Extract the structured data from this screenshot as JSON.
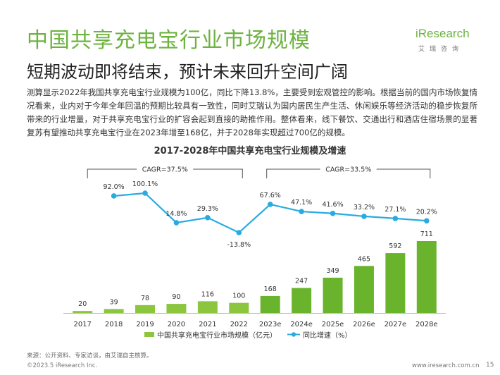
{
  "page": {
    "title": "中国共享充电宝行业市场规模",
    "subtitle": "短期波动即将结束，预计未来回升空间广阔",
    "body_text": "测算显示2022年我国共享充电宝行业规模为100亿，同比下降13.8%，主要受到宏观管控的影响。根据当前的国内市场恢复情况看来，业内对于今年全年回温的预期比较具有一致性，同时艾瑞认为国内居民生产生活、休闲娱乐等经济活动的稳步恢复所带来的行业增量，对于共享充电宝行业的扩容会起到直接的助推作用。整体看来，线下餐饮、交通出行和酒店住宿场景的显著复苏有望推动共享充电宝行业在2023年增至168亿，并于2028年实现超过700亿的规模。",
    "source": "来源：公开资料、专家访谈，由艾瑞自主核算。",
    "copyright": "©2023.5 iResearch Inc.",
    "site": "www.iresearch.com.cn",
    "page_number": "15"
  },
  "logo": {
    "brand": "iResearch",
    "cn": "艾瑞咨询"
  },
  "colors": {
    "bar": "#8cc63f",
    "bar_forecast": "#6ab42d",
    "line": "#29abe2",
    "title_green": "#6db33f"
  },
  "chart_data": {
    "type": "bar",
    "title": "2017-2028年中国共享充电宝行业规模及增速",
    "categories": [
      "2017",
      "2018",
      "2019",
      "2020",
      "2021",
      "2022",
      "2023e",
      "2024e",
      "2025e",
      "2026e",
      "2027e",
      "2028e"
    ],
    "series": [
      {
        "name": "中国共享充电宝行业市场规模（亿元）",
        "type": "bar",
        "values": [
          20,
          39,
          78,
          90,
          116,
          100,
          168,
          247,
          349,
          465,
          592,
          711
        ],
        "labels": [
          "20",
          "39",
          "78",
          "90",
          "116",
          "100",
          "168",
          "247",
          "349",
          "465",
          "592",
          "711"
        ]
      },
      {
        "name": "同比增速（%）",
        "type": "line",
        "values": [
          null,
          92.0,
          100.1,
          14.8,
          29.3,
          -13.8,
          67.6,
          47.1,
          41.6,
          33.2,
          27.1,
          20.2
        ],
        "labels": [
          "",
          "92.0%",
          "100.1%",
          "14.8%",
          "29.3%",
          "-13.8%",
          "67.6%",
          "47.1%",
          "41.6%",
          "33.2%",
          "27.1%",
          "20.2%"
        ]
      }
    ],
    "annotations": [
      {
        "text": "CAGR=37.5%",
        "from": "2017",
        "to": "2022"
      },
      {
        "text": "CAGR=33.5%",
        "from": "2023e",
        "to": "2028e"
      }
    ],
    "legend_position": "bottom",
    "grid": false
  }
}
